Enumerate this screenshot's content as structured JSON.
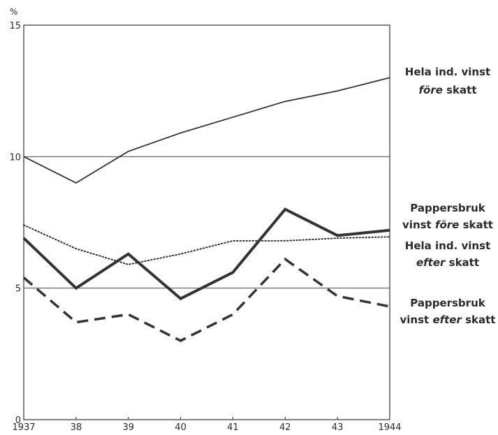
{
  "chart_data": {
    "type": "line",
    "unit_label": "%",
    "x": [
      "1937",
      "38",
      "39",
      "40",
      "41",
      "42",
      "43",
      "1944"
    ],
    "ylim": [
      0,
      15
    ],
    "y_ticks": [
      "0",
      "5",
      "10",
      "15"
    ],
    "grid": "horizontal lines at 5 and 10",
    "series": [
      {
        "name_lines": [
          [
            "Hela ind. vinst",
            ""
          ],
          [
            "före",
            " skatt"
          ]
        ],
        "style": "thin-solid",
        "values": [
          10.0,
          9.0,
          10.2,
          10.9,
          11.5,
          12.1,
          12.5,
          13.0
        ]
      },
      {
        "name_lines": [
          [
            "Pappersbruk",
            ""
          ],
          [
            "vinst ",
            "före",
            " skatt"
          ]
        ],
        "style": "thick-solid",
        "values": [
          6.9,
          5.0,
          6.3,
          4.6,
          5.6,
          8.0,
          7.0,
          7.2
        ]
      },
      {
        "name_lines": [
          [
            "Hela ind. vinst",
            ""
          ],
          [
            "efter",
            " skatt"
          ]
        ],
        "style": "dotted",
        "values": [
          7.4,
          6.5,
          5.9,
          6.3,
          6.8,
          6.8,
          6.9,
          6.95
        ]
      },
      {
        "name_lines": [
          [
            "Pappersbruk",
            ""
          ],
          [
            "vinst ",
            "efter",
            " skatt"
          ]
        ],
        "style": "dashed",
        "values": [
          5.4,
          3.7,
          4.0,
          3.0,
          4.0,
          6.1,
          4.7,
          4.3
        ]
      }
    ]
  }
}
